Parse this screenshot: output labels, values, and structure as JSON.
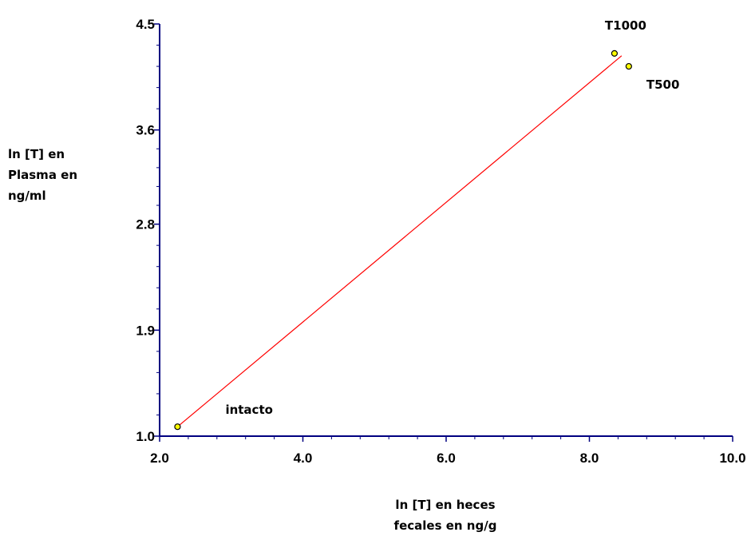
{
  "chart_data": {
    "type": "scatter",
    "title": "",
    "xlabel_lines": [
      "ln [T] en heces",
      "fecales en ng/g"
    ],
    "ylabel_lines": [
      "ln [T] en",
      "Plasma en",
      "ng/ml"
    ],
    "xlim": [
      2.0,
      10.0
    ],
    "ylim": [
      1.0,
      4.5
    ],
    "x_ticks": [
      "2.0",
      "4.0",
      "6.0",
      "8.0",
      "10.0"
    ],
    "y_ticks": [
      "1.0",
      "1.9",
      "2.8",
      "3.6",
      "4.5"
    ],
    "grid": false,
    "series": [
      {
        "points": [
          {
            "x": 2.25,
            "y": 1.08,
            "label": "intacto"
          },
          {
            "x": 8.35,
            "y": 4.25,
            "label": "T1000"
          },
          {
            "x": 8.55,
            "y": 4.14,
            "label": "T500"
          }
        ],
        "marker_color": "#ffff00",
        "marker_edge": "#000000"
      }
    ],
    "trendline": {
      "x": [
        2.25,
        8.45
      ],
      "y": [
        1.08,
        4.23
      ],
      "color": "#ff0000"
    },
    "axis_color": "#000080"
  }
}
